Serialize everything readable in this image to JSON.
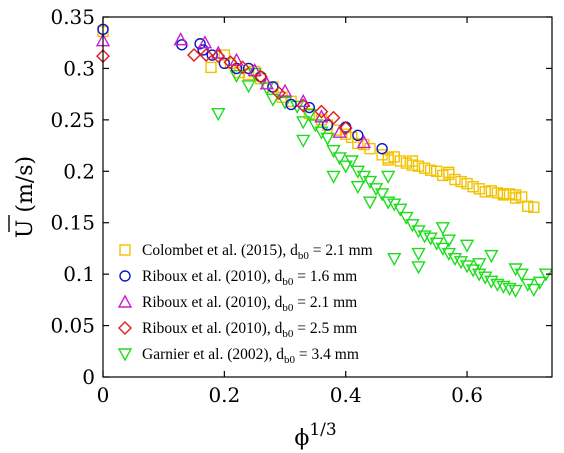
{
  "chart_data": {
    "type": "scatter",
    "xlabel": "ϕ",
    "xlabel_sup": "1/3",
    "ylabel": "U (m/s)",
    "ylabel_overline": "U",
    "xlim": [
      0,
      0.74
    ],
    "ylim": [
      0,
      0.35
    ],
    "xticks": [
      {
        "v": 0,
        "label": "0"
      },
      {
        "v": 0.2,
        "label": "0.2"
      },
      {
        "v": 0.4,
        "label": "0.4"
      },
      {
        "v": 0.6,
        "label": "0.6"
      }
    ],
    "yticks": [
      {
        "v": 0,
        "label": "0"
      },
      {
        "v": 0.05,
        "label": "0.05"
      },
      {
        "v": 0.1,
        "label": "0.1"
      },
      {
        "v": 0.15,
        "label": "0.15"
      },
      {
        "v": 0.2,
        "label": "0.2"
      },
      {
        "v": 0.25,
        "label": "0.25"
      },
      {
        "v": 0.3,
        "label": "0.3"
      },
      {
        "v": 0.35,
        "label": "0.35"
      }
    ],
    "grid": false,
    "legend_position": "bottom-left",
    "series": [
      {
        "name": "Colombet et al. (2015), d",
        "sub": "b0",
        "suffix": " = 2.1 mm",
        "marker": "square",
        "color": "#f2c200",
        "points": [
          [
            0.0,
            0.336
          ],
          [
            0.178,
            0.301
          ],
          [
            0.2,
            0.313
          ],
          [
            0.21,
            0.305
          ],
          [
            0.225,
            0.296
          ],
          [
            0.24,
            0.294
          ],
          [
            0.25,
            0.297
          ],
          [
            0.26,
            0.29
          ],
          [
            0.28,
            0.282
          ],
          [
            0.295,
            0.272
          ],
          [
            0.31,
            0.268
          ],
          [
            0.34,
            0.256
          ],
          [
            0.36,
            0.25
          ],
          [
            0.37,
            0.245
          ],
          [
            0.385,
            0.24
          ],
          [
            0.4,
            0.236
          ],
          [
            0.41,
            0.233
          ],
          [
            0.42,
            0.227
          ],
          [
            0.43,
            0.226
          ],
          [
            0.44,
            0.222
          ],
          [
            0.46,
            0.216
          ],
          [
            0.47,
            0.213
          ],
          [
            0.48,
            0.214
          ],
          [
            0.49,
            0.21
          ],
          [
            0.5,
            0.208
          ],
          [
            0.51,
            0.206
          ],
          [
            0.52,
            0.205
          ],
          [
            0.53,
            0.203
          ],
          [
            0.54,
            0.201
          ],
          [
            0.56,
            0.196
          ],
          [
            0.57,
            0.197
          ],
          [
            0.58,
            0.192
          ],
          [
            0.59,
            0.19
          ],
          [
            0.6,
            0.188
          ],
          [
            0.61,
            0.185
          ],
          [
            0.62,
            0.183
          ],
          [
            0.63,
            0.18
          ],
          [
            0.64,
            0.181
          ],
          [
            0.65,
            0.179
          ],
          [
            0.66,
            0.177
          ],
          [
            0.67,
            0.178
          ],
          [
            0.68,
            0.174
          ],
          [
            0.69,
            0.175
          ],
          [
            0.7,
            0.166
          ],
          [
            0.71,
            0.165
          ],
          [
            0.68,
            0.177
          ],
          [
            0.66,
            0.178
          ],
          [
            0.55,
            0.2
          ],
          [
            0.57,
            0.199
          ],
          [
            0.51,
            0.21
          ],
          [
            0.47,
            0.211
          ]
        ]
      },
      {
        "name": "Riboux et al. (2010),    d",
        "sub": "b0",
        "suffix": " = 1.6 mm",
        "marker": "circle",
        "color": "#0a14c8",
        "points": [
          [
            0.0,
            0.338
          ],
          [
            0.13,
            0.323
          ],
          [
            0.16,
            0.324
          ],
          [
            0.165,
            0.318
          ],
          [
            0.18,
            0.313
          ],
          [
            0.2,
            0.305
          ],
          [
            0.22,
            0.3
          ],
          [
            0.24,
            0.3
          ],
          [
            0.26,
            0.292
          ],
          [
            0.28,
            0.282
          ],
          [
            0.31,
            0.265
          ],
          [
            0.34,
            0.262
          ],
          [
            0.37,
            0.245
          ],
          [
            0.4,
            0.243
          ],
          [
            0.42,
            0.235
          ],
          [
            0.46,
            0.222
          ]
        ]
      },
      {
        "name": "Riboux et al. (2010),    d",
        "sub": "b0",
        "suffix": " = 2.1 mm",
        "marker": "triangle-up",
        "color": "#c81ecf",
        "points": [
          [
            0.0,
            0.327
          ],
          [
            0.128,
            0.328
          ],
          [
            0.168,
            0.325
          ],
          [
            0.19,
            0.315
          ],
          [
            0.22,
            0.308
          ],
          [
            0.25,
            0.298
          ],
          [
            0.27,
            0.285
          ],
          [
            0.3,
            0.278
          ],
          [
            0.33,
            0.268
          ],
          [
            0.36,
            0.253
          ],
          [
            0.39,
            0.238
          ],
          [
            0.43,
            0.228
          ]
        ]
      },
      {
        "name": "Riboux et al. (2010),    d",
        "sub": "b0",
        "suffix": " = 2.5 mm",
        "marker": "diamond",
        "color": "#dc1e1e",
        "points": [
          [
            0.0,
            0.312
          ],
          [
            0.15,
            0.313
          ],
          [
            0.17,
            0.313
          ],
          [
            0.19,
            0.312
          ],
          [
            0.21,
            0.306
          ],
          [
            0.23,
            0.301
          ],
          [
            0.26,
            0.292
          ],
          [
            0.29,
            0.276
          ],
          [
            0.33,
            0.264
          ],
          [
            0.36,
            0.258
          ],
          [
            0.38,
            0.252
          ],
          [
            0.4,
            0.242
          ]
        ]
      },
      {
        "name": "Garnier et al. (2002),    d",
        "sub": "b0",
        "suffix": " = 3.4 mm",
        "marker": "triangle-down",
        "color": "#1edc1e",
        "points": [
          [
            0.19,
            0.256
          ],
          [
            0.22,
            0.293
          ],
          [
            0.24,
            0.283
          ],
          [
            0.25,
            0.295
          ],
          [
            0.27,
            0.281
          ],
          [
            0.28,
            0.27
          ],
          [
            0.3,
            0.267
          ],
          [
            0.32,
            0.263
          ],
          [
            0.33,
            0.248
          ],
          [
            0.34,
            0.255
          ],
          [
            0.35,
            0.245
          ],
          [
            0.36,
            0.238
          ],
          [
            0.37,
            0.232
          ],
          [
            0.38,
            0.22
          ],
          [
            0.39,
            0.213
          ],
          [
            0.4,
            0.205
          ],
          [
            0.41,
            0.21
          ],
          [
            0.42,
            0.2
          ],
          [
            0.43,
            0.195
          ],
          [
            0.44,
            0.19
          ],
          [
            0.45,
            0.183
          ],
          [
            0.46,
            0.178
          ],
          [
            0.47,
            0.17
          ],
          [
            0.48,
            0.168
          ],
          [
            0.49,
            0.163
          ],
          [
            0.5,
            0.155
          ],
          [
            0.51,
            0.148
          ],
          [
            0.52,
            0.142
          ],
          [
            0.53,
            0.137
          ],
          [
            0.54,
            0.135
          ],
          [
            0.55,
            0.13
          ],
          [
            0.56,
            0.125
          ],
          [
            0.57,
            0.12
          ],
          [
            0.58,
            0.115
          ],
          [
            0.59,
            0.112
          ],
          [
            0.6,
            0.108
          ],
          [
            0.61,
            0.104
          ],
          [
            0.62,
            0.1
          ],
          [
            0.63,
            0.097
          ],
          [
            0.64,
            0.093
          ],
          [
            0.65,
            0.09
          ],
          [
            0.66,
            0.088
          ],
          [
            0.67,
            0.086
          ],
          [
            0.68,
            0.084
          ],
          [
            0.69,
            0.1
          ],
          [
            0.7,
            0.09
          ],
          [
            0.71,
            0.085
          ],
          [
            0.72,
            0.092
          ],
          [
            0.73,
            0.1
          ],
          [
            0.44,
            0.17
          ],
          [
            0.48,
            0.115
          ],
          [
            0.52,
            0.12
          ],
          [
            0.56,
            0.145
          ],
          [
            0.6,
            0.128
          ],
          [
            0.64,
            0.118
          ],
          [
            0.68,
            0.105
          ],
          [
            0.47,
            0.195
          ],
          [
            0.38,
            0.195
          ],
          [
            0.33,
            0.23
          ],
          [
            0.42,
            0.185
          ],
          [
            0.52,
            0.107
          ],
          [
            0.57,
            0.133
          ],
          [
            0.62,
            0.11
          ]
        ]
      }
    ]
  }
}
